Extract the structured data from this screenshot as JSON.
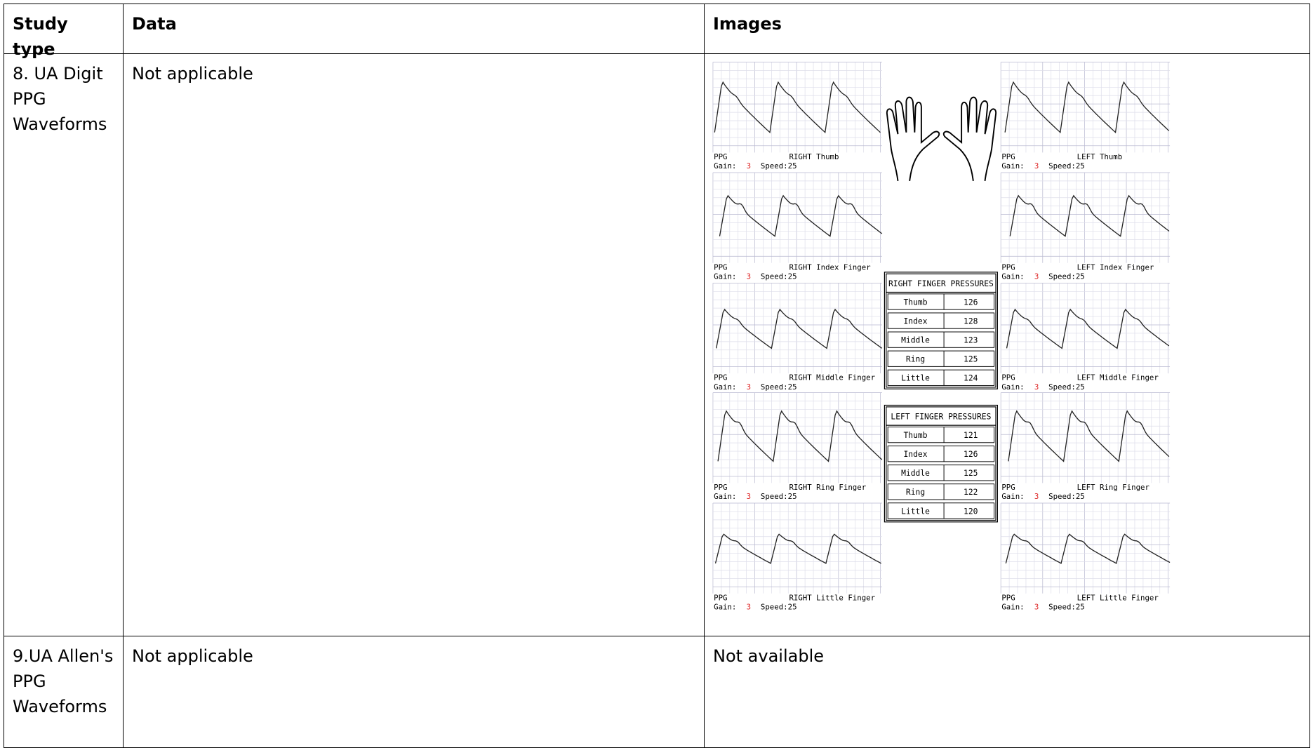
{
  "table": {
    "header": [
      "Study type",
      "Data",
      "Images"
    ],
    "rows": [
      {
        "study_type": "8. UA Digit PPG Waveforms",
        "data": "Not applicable",
        "images": {
          "panels": [
            {
              "signal": "PPG",
              "label": "RIGHT Thumb",
              "gain_label": "Gain:",
              "gain": 3,
              "speed": "Speed:25"
            },
            {
              "signal": "PPG",
              "label": "LEFT Thumb",
              "gain_label": "Gain:",
              "gain": 3,
              "speed": "Speed:25"
            },
            {
              "signal": "PPG",
              "label": "RIGHT Index Finger",
              "gain_label": "Gain:",
              "gain": 3,
              "speed": "Speed:25"
            },
            {
              "signal": "PPG",
              "label": "LEFT Index Finger",
              "gain_label": "Gain:",
              "gain": 3,
              "speed": "Speed:25"
            },
            {
              "signal": "PPG",
              "label": "RIGHT Middle Finger",
              "gain_label": "Gain:",
              "gain": 3,
              "speed": "Speed:25"
            },
            {
              "signal": "PPG",
              "label": "LEFT Middle Finger",
              "gain_label": "Gain:",
              "gain": 3,
              "speed": "Speed:25"
            },
            {
              "signal": "PPG",
              "label": "RIGHT Ring Finger",
              "gain_label": "Gain:",
              "gain": 3,
              "speed": "Speed:25"
            },
            {
              "signal": "PPG",
              "label": "LEFT Ring Finger",
              "gain_label": "Gain:",
              "gain": 3,
              "speed": "Speed:25"
            },
            {
              "signal": "PPG",
              "label": "RIGHT Little Finger",
              "gain_label": "Gain:",
              "gain": 3,
              "speed": "Speed:25"
            },
            {
              "signal": "PPG",
              "label": "LEFT Little Finger",
              "gain_label": "Gain:",
              "gain": 3,
              "speed": "Speed:25"
            }
          ],
          "pressure_tables": [
            {
              "title": "RIGHT FINGER PRESSURES",
              "rows": [
                [
                  "Thumb",
                  126
                ],
                [
                  "Index",
                  128
                ],
                [
                  "Middle",
                  123
                ],
                [
                  "Ring",
                  125
                ],
                [
                  "Little",
                  124
                ]
              ]
            },
            {
              "title": "LEFT FINGER PRESSURES",
              "rows": [
                [
                  "Thumb",
                  121
                ],
                [
                  "Index",
                  126
                ],
                [
                  "Middle",
                  125
                ],
                [
                  "Ring",
                  122
                ],
                [
                  "Little",
                  120
                ]
              ]
            }
          ]
        }
      },
      {
        "study_type": "9.UA Allen's PPG Waveforms",
        "data": "Not applicable",
        "images": "Not available"
      }
    ]
  }
}
